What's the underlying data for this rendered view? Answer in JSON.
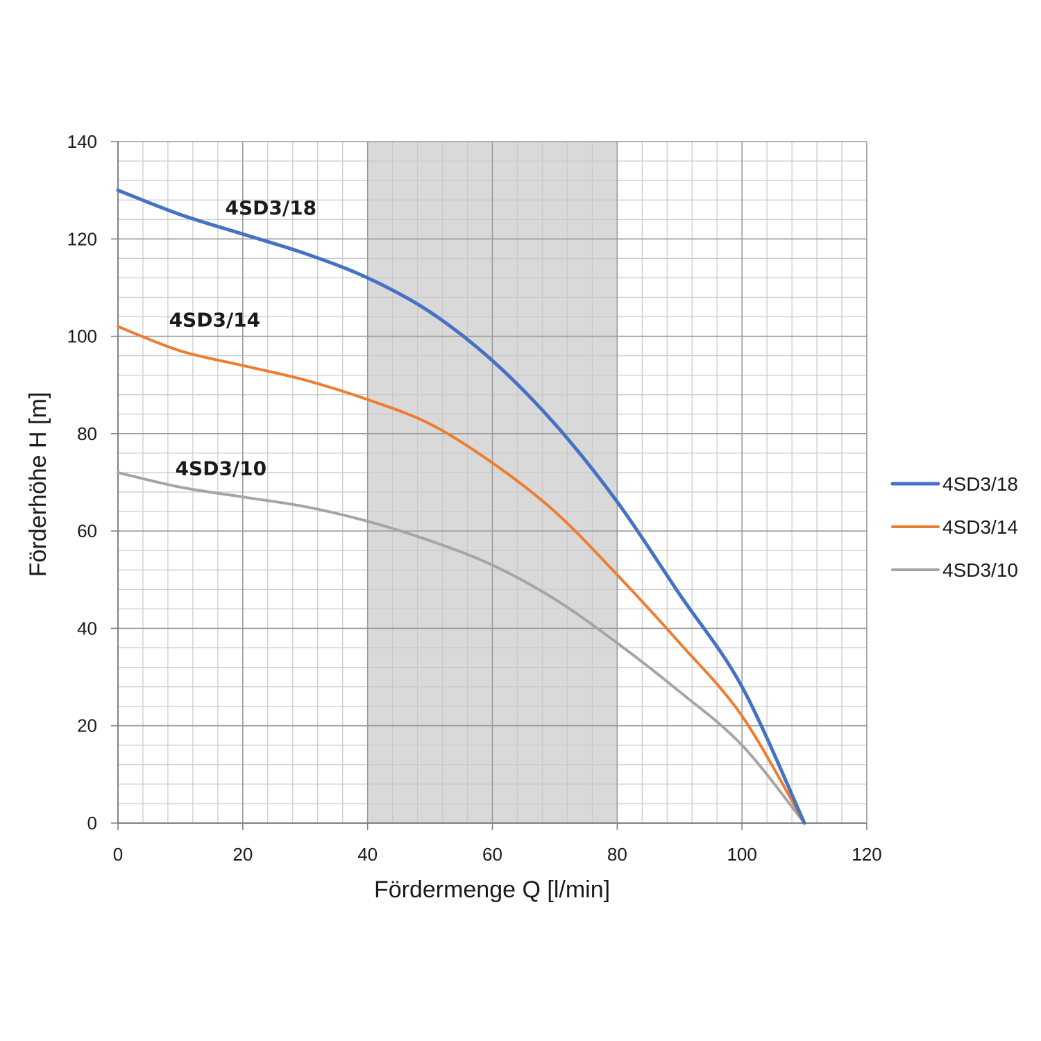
{
  "chart_data": {
    "type": "line",
    "xlabel": "Fördermenge Q [l/min]",
    "ylabel": "Förderhöhe H [m]",
    "xlim": [
      0,
      120
    ],
    "ylim": [
      0,
      140
    ],
    "x_ticks": [
      0,
      20,
      40,
      60,
      80,
      100,
      120
    ],
    "y_ticks": [
      0,
      20,
      40,
      60,
      80,
      100,
      120,
      140
    ],
    "x_tick_labels": [
      "0",
      "20",
      "40",
      "60",
      "80",
      "100",
      "120"
    ],
    "y_tick_labels": [
      "0",
      "20",
      "40",
      "60",
      "80",
      "100",
      "120",
      "140"
    ],
    "grid": "on (major every 20, minor every 4 on x and 4 on y)",
    "shaded_range_x": [
      40,
      80
    ],
    "shaded_color": "#d9d9d9",
    "legend_placement": "right",
    "series": [
      {
        "name": "4SD3/18",
        "color": "#4472c4",
        "x": [
          0,
          10,
          20,
          30,
          40,
          50,
          60,
          70,
          80,
          90,
          100,
          110
        ],
        "y": [
          130,
          125,
          121,
          117,
          112,
          105,
          95,
          82,
          66,
          47,
          28,
          0
        ]
      },
      {
        "name": "4SD3/14",
        "color": "#ed7d31",
        "x": [
          0,
          10,
          20,
          30,
          40,
          50,
          60,
          70,
          80,
          90,
          100,
          110
        ],
        "y": [
          102,
          97,
          94,
          91,
          87,
          82,
          74,
          64,
          51,
          37,
          22,
          0
        ]
      },
      {
        "name": "4SD3/10",
        "color": "#a5a5a5",
        "x": [
          0,
          10,
          20,
          30,
          40,
          50,
          60,
          70,
          80,
          90,
          100,
          110
        ],
        "y": [
          72,
          69,
          67,
          65,
          62,
          58,
          53,
          46,
          37,
          27,
          16,
          0
        ]
      }
    ],
    "annotations": [
      {
        "text": "4SD3/18",
        "x": 24.5,
        "y": 125
      },
      {
        "text": "4SD3/14",
        "x": 15.5,
        "y": 102
      },
      {
        "text": "4SD3/10",
        "x": 16.5,
        "y": 71.5
      }
    ]
  }
}
